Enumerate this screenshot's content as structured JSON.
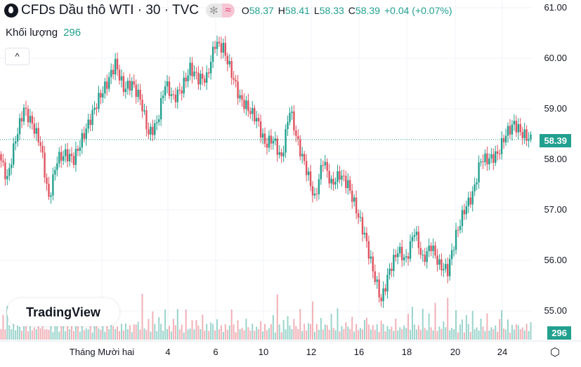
{
  "header": {
    "title": "CFDs Dầu thô WTI · 30 · TVC",
    "pill_left": "✻",
    "pill_right": "≈",
    "ohlc": [
      {
        "k": "O",
        "v": "58.37"
      },
      {
        "k": "H",
        "v": "58.41"
      },
      {
        "k": "L",
        "v": "58.33"
      },
      {
        "k": "C",
        "v": "58.39"
      },
      {
        "k": "",
        "v": "+0.04 (+0.07%)"
      }
    ]
  },
  "volume": {
    "label": "Khối lượng",
    "value": "296"
  },
  "collapse_label": "^",
  "logo": "TradingView",
  "colors": {
    "up": "#22a08f",
    "down": "#e05360",
    "grid": "#f0f3fa"
  },
  "chart_data": {
    "type": "candlestick",
    "ylim": [
      55,
      61
    ],
    "y_ticks": [
      "61.00",
      "60.00",
      "59.00",
      "58.00",
      "57.00",
      "56.00",
      "55.00"
    ],
    "x_ticks": [
      "Tháng Mười hai",
      "4",
      "6",
      "10",
      "12",
      "16",
      "18",
      "20",
      "24"
    ],
    "last_price": "58.39",
    "last_volume": "296",
    "closes": [
      58.1,
      57.6,
      58.4,
      59.0,
      58.7,
      58.3,
      57.2,
      58.0,
      58.1,
      58.0,
      58.4,
      58.8,
      59.2,
      59.5,
      59.9,
      59.4,
      59.5,
      59.2,
      58.5,
      58.7,
      59.5,
      59.2,
      59.4,
      59.8,
      59.6,
      59.6,
      60.3,
      60.2,
      59.7,
      59.2,
      59.0,
      58.8,
      58.3,
      58.4,
      58.0,
      59.0,
      58.3,
      57.8,
      57.2,
      58.0,
      57.5,
      57.7,
      57.5,
      57.0,
      56.5,
      55.8,
      55.2,
      55.8,
      56.2,
      56.0,
      56.6,
      56.0,
      56.3,
      55.9,
      55.8,
      56.5,
      57.0,
      57.3,
      58.0,
      58.0,
      58.1,
      58.5,
      58.7,
      58.5,
      58.39
    ],
    "volumes": [
      3,
      5,
      2,
      9,
      3,
      2,
      4,
      2,
      6,
      3,
      2,
      5,
      3,
      2,
      7,
      2,
      3,
      2,
      4,
      3,
      8,
      2,
      3,
      2,
      6,
      2,
      3,
      4,
      2,
      5,
      3,
      2,
      6,
      2,
      3,
      2,
      4,
      3,
      2,
      5,
      2,
      3,
      2,
      3,
      2,
      4,
      6,
      3,
      2,
      4,
      2,
      3,
      2,
      4,
      3,
      2,
      3,
      2,
      3,
      2,
      4,
      2,
      3,
      2,
      3
    ]
  }
}
